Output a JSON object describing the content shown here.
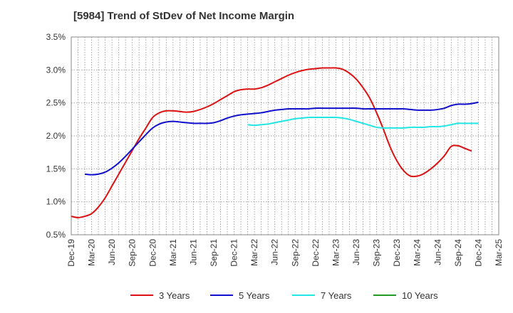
{
  "chart_data": {
    "type": "line",
    "title": "[5984]  Trend of StDev of Net Income Margin",
    "xlabel": "",
    "ylabel": "",
    "x_ticks": [
      "Dec-19",
      "Mar-20",
      "Jun-20",
      "Sep-20",
      "Dec-20",
      "Mar-21",
      "Jun-21",
      "Sep-21",
      "Dec-21",
      "Mar-22",
      "Jun-22",
      "Sep-22",
      "Dec-22",
      "Mar-23",
      "Jun-23",
      "Sep-23",
      "Dec-23",
      "Mar-24",
      "Jun-24",
      "Sep-24",
      "Dec-24",
      "Mar-25"
    ],
    "y_ticks": [
      "0.5%",
      "1.0%",
      "1.5%",
      "2.0%",
      "2.5%",
      "3.0%",
      "3.5%"
    ],
    "y_tick_values": [
      0.5,
      1.0,
      1.5,
      2.0,
      2.5,
      3.0,
      3.5
    ],
    "ylim": [
      0.5,
      3.5
    ],
    "grid": true,
    "legend_position": "bottom",
    "series": [
      {
        "name": "3 Years",
        "color": "#dd1111",
        "points": [
          [
            "Dec-19",
            0.78
          ],
          [
            "Jan-20",
            0.76
          ],
          [
            "Feb-20",
            0.78
          ],
          [
            "Mar-20",
            0.82
          ],
          [
            "Apr-20",
            0.92
          ],
          [
            "May-20",
            1.06
          ],
          [
            "Jun-20",
            1.24
          ],
          [
            "Jul-20",
            1.42
          ],
          [
            "Aug-20",
            1.6
          ],
          [
            "Sep-20",
            1.78
          ],
          [
            "Oct-20",
            1.96
          ],
          [
            "Nov-20",
            2.12
          ],
          [
            "Dec-20",
            2.28
          ],
          [
            "Jan-21",
            2.35
          ],
          [
            "Feb-21",
            2.38
          ],
          [
            "Mar-21",
            2.38
          ],
          [
            "Apr-21",
            2.37
          ],
          [
            "May-21",
            2.36
          ],
          [
            "Jun-21",
            2.37
          ],
          [
            "Jul-21",
            2.4
          ],
          [
            "Aug-21",
            2.44
          ],
          [
            "Sep-21",
            2.49
          ],
          [
            "Oct-21",
            2.55
          ],
          [
            "Nov-21",
            2.61
          ],
          [
            "Dec-21",
            2.67
          ],
          [
            "Jan-22",
            2.7
          ],
          [
            "Feb-22",
            2.71
          ],
          [
            "Mar-22",
            2.71
          ],
          [
            "Apr-22",
            2.73
          ],
          [
            "May-22",
            2.77
          ],
          [
            "Jun-22",
            2.82
          ],
          [
            "Jul-22",
            2.87
          ],
          [
            "Aug-22",
            2.92
          ],
          [
            "Sep-22",
            2.96
          ],
          [
            "Oct-22",
            2.99
          ],
          [
            "Nov-22",
            3.01
          ],
          [
            "Dec-22",
            3.02
          ],
          [
            "Jan-23",
            3.03
          ],
          [
            "Feb-23",
            3.03
          ],
          [
            "Mar-23",
            3.03
          ],
          [
            "Apr-23",
            3.01
          ],
          [
            "May-23",
            2.95
          ],
          [
            "Jun-23",
            2.86
          ],
          [
            "Jul-23",
            2.73
          ],
          [
            "Aug-23",
            2.57
          ],
          [
            "Sep-23",
            2.35
          ],
          [
            "Oct-23",
            2.1
          ],
          [
            "Nov-23",
            1.83
          ],
          [
            "Dec-23",
            1.62
          ],
          [
            "Jan-24",
            1.47
          ],
          [
            "Feb-24",
            1.39
          ],
          [
            "Mar-24",
            1.39
          ],
          [
            "Apr-24",
            1.43
          ],
          [
            "May-24",
            1.5
          ],
          [
            "Jun-24",
            1.59
          ],
          [
            "Jul-24",
            1.7
          ],
          [
            "Aug-24",
            1.84
          ],
          [
            "Sep-24",
            1.85
          ],
          [
            "Oct-24",
            1.81
          ],
          [
            "Nov-24",
            1.77
          ]
        ]
      },
      {
        "name": "5 Years",
        "color": "#1111cc",
        "points": [
          [
            "Feb-20",
            1.42
          ],
          [
            "Mar-20",
            1.41
          ],
          [
            "Apr-20",
            1.42
          ],
          [
            "May-20",
            1.45
          ],
          [
            "Jun-20",
            1.51
          ],
          [
            "Jul-20",
            1.59
          ],
          [
            "Aug-20",
            1.69
          ],
          [
            "Sep-20",
            1.8
          ],
          [
            "Oct-20",
            1.91
          ],
          [
            "Nov-20",
            2.02
          ],
          [
            "Dec-20",
            2.12
          ],
          [
            "Jan-21",
            2.18
          ],
          [
            "Feb-21",
            2.21
          ],
          [
            "Mar-21",
            2.22
          ],
          [
            "Apr-21",
            2.21
          ],
          [
            "May-21",
            2.2
          ],
          [
            "Jun-21",
            2.19
          ],
          [
            "Jul-21",
            2.19
          ],
          [
            "Aug-21",
            2.19
          ],
          [
            "Sep-21",
            2.2
          ],
          [
            "Oct-21",
            2.23
          ],
          [
            "Nov-21",
            2.27
          ],
          [
            "Dec-21",
            2.3
          ],
          [
            "Jan-22",
            2.32
          ],
          [
            "Feb-22",
            2.33
          ],
          [
            "Mar-22",
            2.34
          ],
          [
            "Apr-22",
            2.35
          ],
          [
            "May-22",
            2.37
          ],
          [
            "Jun-22",
            2.39
          ],
          [
            "Jul-22",
            2.4
          ],
          [
            "Aug-22",
            2.41
          ],
          [
            "Sep-22",
            2.41
          ],
          [
            "Oct-22",
            2.41
          ],
          [
            "Nov-22",
            2.41
          ],
          [
            "Dec-22",
            2.42
          ],
          [
            "Jan-23",
            2.42
          ],
          [
            "Feb-23",
            2.42
          ],
          [
            "Mar-23",
            2.42
          ],
          [
            "Apr-23",
            2.42
          ],
          [
            "May-23",
            2.42
          ],
          [
            "Jun-23",
            2.42
          ],
          [
            "Jul-23",
            2.41
          ],
          [
            "Aug-23",
            2.41
          ],
          [
            "Sep-23",
            2.41
          ],
          [
            "Oct-23",
            2.41
          ],
          [
            "Nov-23",
            2.41
          ],
          [
            "Dec-23",
            2.41
          ],
          [
            "Jan-24",
            2.41
          ],
          [
            "Feb-24",
            2.4
          ],
          [
            "Mar-24",
            2.39
          ],
          [
            "Apr-24",
            2.39
          ],
          [
            "May-24",
            2.39
          ],
          [
            "Jun-24",
            2.4
          ],
          [
            "Jul-24",
            2.42
          ],
          [
            "Aug-24",
            2.46
          ],
          [
            "Sep-24",
            2.48
          ],
          [
            "Oct-24",
            2.48
          ],
          [
            "Nov-24",
            2.49
          ],
          [
            "Dec-24",
            2.51
          ]
        ]
      },
      {
        "name": "7 Years",
        "color": "#22e5e5",
        "points": [
          [
            "Feb-22",
            2.17
          ],
          [
            "Mar-22",
            2.16
          ],
          [
            "Apr-22",
            2.17
          ],
          [
            "May-22",
            2.18
          ],
          [
            "Jun-22",
            2.2
          ],
          [
            "Jul-22",
            2.22
          ],
          [
            "Aug-22",
            2.24
          ],
          [
            "Sep-22",
            2.26
          ],
          [
            "Oct-22",
            2.27
          ],
          [
            "Nov-22",
            2.28
          ],
          [
            "Dec-22",
            2.28
          ],
          [
            "Jan-23",
            2.28
          ],
          [
            "Feb-23",
            2.28
          ],
          [
            "Mar-23",
            2.28
          ],
          [
            "Apr-23",
            2.27
          ],
          [
            "May-23",
            2.25
          ],
          [
            "Jun-23",
            2.22
          ],
          [
            "Jul-23",
            2.19
          ],
          [
            "Aug-23",
            2.16
          ],
          [
            "Sep-23",
            2.13
          ],
          [
            "Oct-23",
            2.12
          ],
          [
            "Nov-23",
            2.12
          ],
          [
            "Dec-23",
            2.12
          ],
          [
            "Jan-24",
            2.12
          ],
          [
            "Feb-24",
            2.13
          ],
          [
            "Mar-24",
            2.13
          ],
          [
            "Apr-24",
            2.13
          ],
          [
            "May-24",
            2.14
          ],
          [
            "Jun-24",
            2.14
          ],
          [
            "Jul-24",
            2.15
          ],
          [
            "Aug-24",
            2.17
          ],
          [
            "Sep-24",
            2.19
          ],
          [
            "Oct-24",
            2.19
          ],
          [
            "Nov-24",
            2.19
          ],
          [
            "Dec-24",
            2.19
          ]
        ]
      },
      {
        "name": "10 Years",
        "color": "#229922",
        "points": []
      }
    ]
  }
}
